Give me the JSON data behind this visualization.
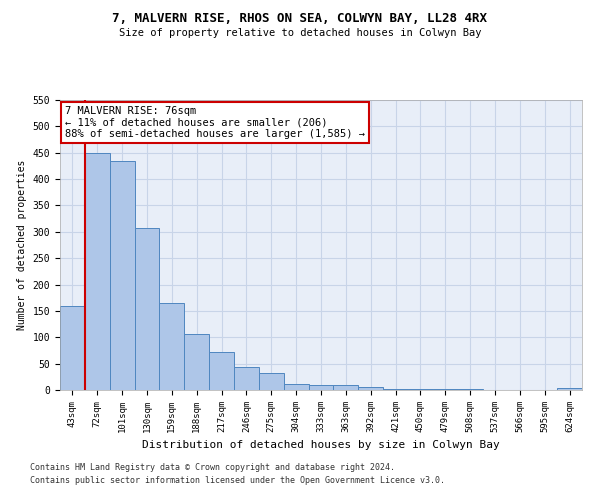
{
  "title_line1": "7, MALVERN RISE, RHOS ON SEA, COLWYN BAY, LL28 4RX",
  "title_line2": "Size of property relative to detached houses in Colwyn Bay",
  "xlabel": "Distribution of detached houses by size in Colwyn Bay",
  "ylabel": "Number of detached properties",
  "footnote1": "Contains HM Land Registry data © Crown copyright and database right 2024.",
  "footnote2": "Contains public sector information licensed under the Open Government Licence v3.0.",
  "categories": [
    "43sqm",
    "72sqm",
    "101sqm",
    "130sqm",
    "159sqm",
    "188sqm",
    "217sqm",
    "246sqm",
    "275sqm",
    "304sqm",
    "333sqm",
    "363sqm",
    "392sqm",
    "421sqm",
    "450sqm",
    "479sqm",
    "508sqm",
    "537sqm",
    "566sqm",
    "595sqm",
    "624sqm"
  ],
  "values": [
    160,
    450,
    435,
    307,
    165,
    107,
    73,
    44,
    32,
    11,
    9,
    9,
    5,
    2,
    2,
    1,
    1,
    0,
    0,
    0,
    4
  ],
  "bar_color": "#aec6e8",
  "bar_edge_color": "#4f86c0",
  "grid_color": "#c8d4e8",
  "background_color": "#e8eef8",
  "property_line_x": 1,
  "annotation_text": "7 MALVERN RISE: 76sqm\n← 11% of detached houses are smaller (206)\n88% of semi-detached houses are larger (1,585) →",
  "annotation_box_color": "#ffffff",
  "annotation_box_edge": "#cc0000",
  "vline_color": "#cc0000",
  "ylim": [
    0,
    550
  ],
  "yticks": [
    0,
    50,
    100,
    150,
    200,
    250,
    300,
    350,
    400,
    450,
    500,
    550
  ]
}
